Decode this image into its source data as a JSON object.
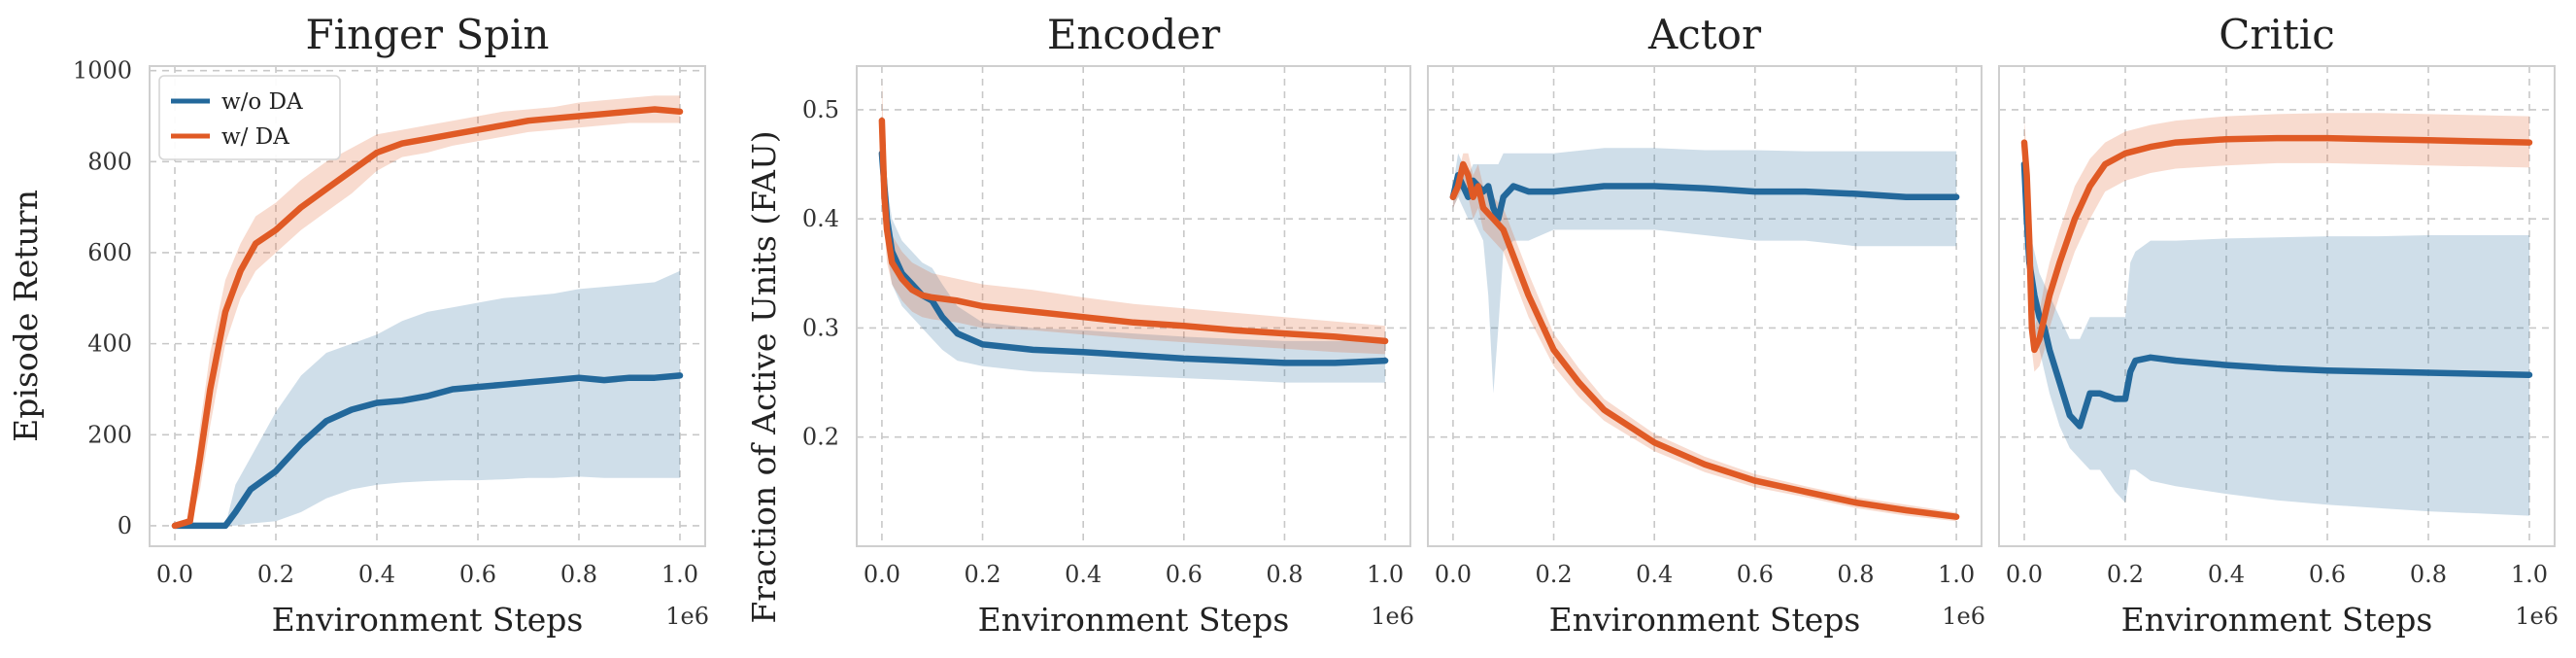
{
  "colors": {
    "wo_da": "#23689b",
    "w_da": "#e05a25"
  },
  "shared": {
    "xlabel": "Environment Steps",
    "x_multiplier": "1e6",
    "ylabel_left": "Episode Return",
    "ylabel_shared": "Fraction of Active Units (FAU)"
  },
  "legend": {
    "placement": "upper-left",
    "entries": [
      "w/o DA",
      "w/ DA"
    ]
  },
  "chart_data": [
    {
      "type": "line",
      "title": "Finger Spin",
      "xlabel": "Environment Steps",
      "ylabel": "Episode Return",
      "xlim": [
        -0.05,
        1.05
      ],
      "ylim": [
        -45,
        1010
      ],
      "xticks": [
        0.0,
        0.2,
        0.4,
        0.6,
        0.8,
        1.0
      ],
      "xtick_labels": [
        "0.0",
        "0.2",
        "0.4",
        "0.6",
        "0.8",
        "1.0"
      ],
      "yticks": [
        0,
        200,
        400,
        600,
        800,
        1000
      ],
      "ytick_labels": [
        "0",
        "200",
        "400",
        "600",
        "800",
        "1000"
      ],
      "grid": true,
      "series": [
        {
          "name": "w/o DA",
          "x": [
            0.0,
            0.05,
            0.1,
            0.12,
            0.15,
            0.2,
            0.25,
            0.3,
            0.35,
            0.4,
            0.45,
            0.5,
            0.55,
            0.6,
            0.65,
            0.7,
            0.75,
            0.8,
            0.85,
            0.9,
            0.95,
            1.0
          ],
          "y": [
            0,
            0,
            0,
            30,
            80,
            120,
            180,
            230,
            255,
            270,
            275,
            285,
            300,
            305,
            310,
            315,
            320,
            325,
            320,
            325,
            325,
            330
          ],
          "lower": [
            0,
            0,
            0,
            0,
            5,
            10,
            30,
            60,
            80,
            90,
            95,
            98,
            100,
            100,
            102,
            105,
            105,
            108,
            105,
            105,
            105,
            105
          ],
          "upper": [
            0,
            0,
            0,
            90,
            150,
            250,
            330,
            380,
            400,
            420,
            450,
            470,
            480,
            490,
            500,
            505,
            510,
            520,
            525,
            530,
            535,
            560
          ]
        },
        {
          "name": "w/ DA",
          "x": [
            0.0,
            0.03,
            0.05,
            0.07,
            0.1,
            0.13,
            0.16,
            0.2,
            0.25,
            0.3,
            0.35,
            0.4,
            0.45,
            0.5,
            0.55,
            0.6,
            0.65,
            0.7,
            0.75,
            0.8,
            0.85,
            0.9,
            0.95,
            1.0
          ],
          "y": [
            0,
            10,
            150,
            300,
            470,
            560,
            620,
            650,
            700,
            740,
            780,
            820,
            840,
            850,
            860,
            870,
            880,
            890,
            895,
            900,
            905,
            910,
            915,
            910
          ],
          "lower": [
            0,
            0,
            80,
            220,
            400,
            500,
            560,
            600,
            650,
            690,
            730,
            780,
            810,
            820,
            835,
            845,
            855,
            865,
            870,
            875,
            880,
            885,
            885,
            885
          ],
          "upper": [
            0,
            20,
            220,
            380,
            540,
            620,
            680,
            710,
            760,
            800,
            830,
            860,
            870,
            880,
            890,
            900,
            910,
            915,
            920,
            930,
            935,
            940,
            945,
            945
          ]
        }
      ]
    },
    {
      "type": "line",
      "title": "Encoder",
      "xlabel": "Environment Steps",
      "ylabel": "Fraction of Active Units (FAU)",
      "xlim": [
        -0.05,
        1.05
      ],
      "ylim": [
        0.1,
        0.54
      ],
      "xticks": [
        0.0,
        0.2,
        0.4,
        0.6,
        0.8,
        1.0
      ],
      "xtick_labels": [
        "0.0",
        "0.2",
        "0.4",
        "0.6",
        "0.8",
        "1.0"
      ],
      "yticks": [
        0.2,
        0.3,
        0.4,
        0.5
      ],
      "ytick_labels": [
        "0.2",
        "0.3",
        "0.4",
        "0.5"
      ],
      "grid": true,
      "series": [
        {
          "name": "w/o DA",
          "x": [
            0.0,
            0.005,
            0.01,
            0.02,
            0.04,
            0.06,
            0.08,
            0.1,
            0.12,
            0.15,
            0.2,
            0.3,
            0.4,
            0.5,
            0.6,
            0.7,
            0.8,
            0.9,
            1.0
          ],
          "y": [
            0.46,
            0.43,
            0.4,
            0.37,
            0.35,
            0.34,
            0.33,
            0.325,
            0.31,
            0.295,
            0.285,
            0.28,
            0.278,
            0.275,
            0.272,
            0.27,
            0.268,
            0.268,
            0.27
          ],
          "lower": [
            0.43,
            0.39,
            0.37,
            0.34,
            0.32,
            0.31,
            0.3,
            0.29,
            0.28,
            0.27,
            0.265,
            0.26,
            0.258,
            0.256,
            0.254,
            0.252,
            0.25,
            0.25,
            0.25
          ],
          "upper": [
            0.49,
            0.47,
            0.43,
            0.4,
            0.38,
            0.37,
            0.36,
            0.355,
            0.34,
            0.32,
            0.305,
            0.3,
            0.298,
            0.295,
            0.292,
            0.29,
            0.288,
            0.288,
            0.29
          ]
        },
        {
          "name": "w/ DA",
          "x": [
            0.0,
            0.005,
            0.01,
            0.02,
            0.04,
            0.06,
            0.08,
            0.1,
            0.15,
            0.2,
            0.3,
            0.4,
            0.5,
            0.6,
            0.7,
            0.8,
            0.9,
            1.0
          ],
          "y": [
            0.49,
            0.42,
            0.39,
            0.36,
            0.345,
            0.335,
            0.33,
            0.328,
            0.325,
            0.32,
            0.315,
            0.31,
            0.305,
            0.302,
            0.298,
            0.295,
            0.292,
            0.288
          ],
          "lower": [
            0.46,
            0.39,
            0.36,
            0.34,
            0.325,
            0.315,
            0.31,
            0.308,
            0.305,
            0.3,
            0.298,
            0.294,
            0.29,
            0.287,
            0.284,
            0.281,
            0.278,
            0.276
          ],
          "upper": [
            0.53,
            0.45,
            0.42,
            0.385,
            0.37,
            0.36,
            0.355,
            0.35,
            0.345,
            0.34,
            0.335,
            0.328,
            0.322,
            0.318,
            0.314,
            0.31,
            0.306,
            0.302
          ]
        }
      ]
    },
    {
      "type": "line",
      "title": "Actor",
      "xlabel": "Environment Steps",
      "ylabel": "",
      "xlim": [
        -0.05,
        1.05
      ],
      "ylim": [
        0.1,
        0.54
      ],
      "xticks": [
        0.0,
        0.2,
        0.4,
        0.6,
        0.8,
        1.0
      ],
      "xtick_labels": [
        "0.0",
        "0.2",
        "0.4",
        "0.6",
        "0.8",
        "1.0"
      ],
      "yticks": [
        0.2,
        0.3,
        0.4,
        0.5
      ],
      "ytick_labels": [],
      "grid": true,
      "series": [
        {
          "name": "w/o DA",
          "x": [
            0.0,
            0.01,
            0.02,
            0.03,
            0.04,
            0.05,
            0.06,
            0.07,
            0.08,
            0.09,
            0.1,
            0.12,
            0.15,
            0.2,
            0.3,
            0.4,
            0.5,
            0.6,
            0.7,
            0.8,
            0.9,
            1.0
          ],
          "y": [
            0.42,
            0.44,
            0.43,
            0.42,
            0.435,
            0.43,
            0.425,
            0.43,
            0.41,
            0.4,
            0.42,
            0.43,
            0.425,
            0.425,
            0.43,
            0.43,
            0.428,
            0.425,
            0.425,
            0.423,
            0.42,
            0.42
          ],
          "lower": [
            0.41,
            0.42,
            0.41,
            0.4,
            0.4,
            0.39,
            0.38,
            0.33,
            0.24,
            0.3,
            0.37,
            0.38,
            0.38,
            0.39,
            0.39,
            0.39,
            0.385,
            0.38,
            0.38,
            0.375,
            0.375,
            0.375
          ],
          "upper": [
            0.43,
            0.46,
            0.45,
            0.44,
            0.45,
            0.45,
            0.45,
            0.45,
            0.45,
            0.45,
            0.46,
            0.46,
            0.46,
            0.46,
            0.465,
            0.465,
            0.463,
            0.463,
            0.462,
            0.462,
            0.462,
            0.462
          ]
        },
        {
          "name": "w/ DA",
          "x": [
            0.0,
            0.01,
            0.02,
            0.03,
            0.04,
            0.05,
            0.06,
            0.08,
            0.1,
            0.15,
            0.2,
            0.25,
            0.3,
            0.35,
            0.4,
            0.5,
            0.6,
            0.7,
            0.8,
            0.9,
            1.0
          ],
          "y": [
            0.42,
            0.43,
            0.45,
            0.44,
            0.42,
            0.43,
            0.41,
            0.4,
            0.39,
            0.33,
            0.28,
            0.25,
            0.225,
            0.21,
            0.195,
            0.175,
            0.16,
            0.15,
            0.14,
            0.133,
            0.127
          ],
          "lower": [
            0.41,
            0.42,
            0.43,
            0.42,
            0.4,
            0.41,
            0.39,
            0.38,
            0.37,
            0.31,
            0.265,
            0.237,
            0.215,
            0.201,
            0.187,
            0.168,
            0.154,
            0.145,
            0.135,
            0.128,
            0.123
          ],
          "upper": [
            0.43,
            0.44,
            0.46,
            0.46,
            0.44,
            0.45,
            0.43,
            0.42,
            0.41,
            0.35,
            0.295,
            0.263,
            0.235,
            0.219,
            0.203,
            0.182,
            0.166,
            0.155,
            0.145,
            0.138,
            0.131
          ]
        }
      ]
    },
    {
      "type": "line",
      "title": "Critic",
      "xlabel": "Environment Steps",
      "ylabel": "",
      "xlim": [
        -0.05,
        1.05
      ],
      "ylim": [
        0.1,
        0.54
      ],
      "xticks": [
        0.0,
        0.2,
        0.4,
        0.6,
        0.8,
        1.0
      ],
      "xtick_labels": [
        "0.0",
        "0.2",
        "0.4",
        "0.6",
        "0.8",
        "1.0"
      ],
      "yticks": [
        0.2,
        0.3,
        0.4,
        0.5
      ],
      "ytick_labels": [],
      "grid": true,
      "series": [
        {
          "name": "w/o DA",
          "x": [
            0.0,
            0.005,
            0.01,
            0.02,
            0.03,
            0.04,
            0.05,
            0.07,
            0.09,
            0.11,
            0.13,
            0.15,
            0.18,
            0.2,
            0.21,
            0.22,
            0.25,
            0.3,
            0.4,
            0.5,
            0.6,
            0.7,
            0.8,
            0.9,
            1.0
          ],
          "y": [
            0.45,
            0.4,
            0.36,
            0.33,
            0.31,
            0.3,
            0.28,
            0.25,
            0.22,
            0.21,
            0.24,
            0.24,
            0.235,
            0.235,
            0.26,
            0.27,
            0.273,
            0.27,
            0.266,
            0.263,
            0.261,
            0.26,
            0.259,
            0.258,
            0.257
          ],
          "lower": [
            0.43,
            0.38,
            0.34,
            0.3,
            0.28,
            0.26,
            0.24,
            0.21,
            0.19,
            0.18,
            0.17,
            0.17,
            0.15,
            0.14,
            0.17,
            0.17,
            0.16,
            0.155,
            0.148,
            0.142,
            0.138,
            0.135,
            0.132,
            0.13,
            0.128
          ],
          "upper": [
            0.47,
            0.42,
            0.39,
            0.37,
            0.35,
            0.34,
            0.33,
            0.31,
            0.29,
            0.29,
            0.31,
            0.31,
            0.31,
            0.31,
            0.36,
            0.37,
            0.38,
            0.38,
            0.382,
            0.383,
            0.384,
            0.384,
            0.385,
            0.385,
            0.385
          ]
        },
        {
          "name": "w/ DA",
          "x": [
            0.0,
            0.005,
            0.01,
            0.015,
            0.02,
            0.03,
            0.04,
            0.05,
            0.07,
            0.1,
            0.13,
            0.16,
            0.2,
            0.25,
            0.3,
            0.4,
            0.5,
            0.6,
            0.7,
            0.8,
            0.9,
            1.0
          ],
          "y": [
            0.47,
            0.44,
            0.38,
            0.3,
            0.28,
            0.29,
            0.31,
            0.33,
            0.36,
            0.4,
            0.43,
            0.45,
            0.46,
            0.466,
            0.47,
            0.473,
            0.474,
            0.474,
            0.473,
            0.472,
            0.471,
            0.47
          ],
          "lower": [
            0.45,
            0.42,
            0.36,
            0.28,
            0.26,
            0.265,
            0.28,
            0.3,
            0.33,
            0.37,
            0.4,
            0.425,
            0.435,
            0.442,
            0.446,
            0.449,
            0.451,
            0.451,
            0.45,
            0.449,
            0.448,
            0.447
          ],
          "upper": [
            0.49,
            0.46,
            0.4,
            0.32,
            0.3,
            0.315,
            0.34,
            0.36,
            0.39,
            0.43,
            0.455,
            0.47,
            0.48,
            0.486,
            0.49,
            0.494,
            0.496,
            0.497,
            0.497,
            0.496,
            0.495,
            0.494
          ]
        }
      ]
    }
  ]
}
